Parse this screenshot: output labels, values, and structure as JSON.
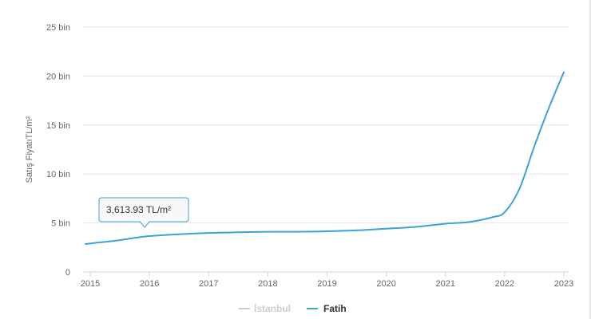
{
  "chart_data": {
    "type": "line",
    "ylabel": "Satış FiyatıTL/m²",
    "ylim": [
      0,
      25000
    ],
    "y_ticks": [
      0,
      5000,
      10000,
      15000,
      20000,
      25000
    ],
    "y_tick_labels": [
      "0",
      "5 bin",
      "10 bin",
      "15 bin",
      "20 bin",
      "25 bin"
    ],
    "x_ticks": [
      "2015",
      "2016",
      "2017",
      "2018",
      "2019",
      "2020",
      "2021",
      "2022",
      "2023"
    ],
    "xlim": [
      2015,
      2023
    ],
    "grid": true,
    "legend_position": "bottom-center",
    "series": [
      {
        "name": "İstanbul",
        "color": "#cccccc",
        "visible": false,
        "points": []
      },
      {
        "name": "Fatih",
        "color": "#3ba3d9",
        "visible": true,
        "points": [
          {
            "x": 2014.92,
            "y": 2850
          },
          {
            "x": 2015.5,
            "y": 3250
          },
          {
            "x": 2015.92,
            "y": 3614
          },
          {
            "x": 2016.5,
            "y": 3850
          },
          {
            "x": 2017.0,
            "y": 3980
          },
          {
            "x": 2017.5,
            "y": 4050
          },
          {
            "x": 2018.0,
            "y": 4100
          },
          {
            "x": 2018.5,
            "y": 4100
          },
          {
            "x": 2019.0,
            "y": 4150
          },
          {
            "x": 2019.5,
            "y": 4250
          },
          {
            "x": 2020.0,
            "y": 4420
          },
          {
            "x": 2020.5,
            "y": 4600
          },
          {
            "x": 2021.0,
            "y": 4930
          },
          {
            "x": 2021.4,
            "y": 5100
          },
          {
            "x": 2021.8,
            "y": 5600
          },
          {
            "x": 2022.0,
            "y": 6100
          },
          {
            "x": 2022.25,
            "y": 8500
          },
          {
            "x": 2022.5,
            "y": 12800
          },
          {
            "x": 2022.75,
            "y": 16800
          },
          {
            "x": 2023.0,
            "y": 20400
          }
        ]
      }
    ],
    "tooltip": {
      "text": "3,613.93 TL/m²",
      "x": 2015.92,
      "y": 3614
    }
  }
}
